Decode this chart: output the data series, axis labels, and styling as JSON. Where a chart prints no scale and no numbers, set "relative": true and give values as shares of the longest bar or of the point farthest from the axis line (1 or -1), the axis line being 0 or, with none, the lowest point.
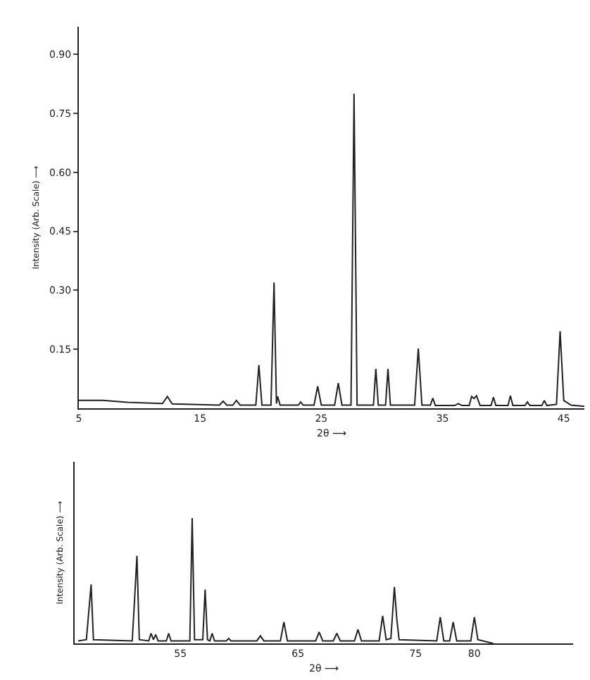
{
  "chart_data": [
    {
      "type": "line",
      "xlabel": "2θ ⟶",
      "ylabel": "Intensity (Arb. Scale) ⟶",
      "xlim": [
        5,
        46.7
      ],
      "ylim": [
        0,
        0.97
      ],
      "xticks": [
        5,
        15,
        25,
        35,
        45
      ],
      "yticks": [
        {
          "value": 0.15,
          "label": "0.15"
        },
        {
          "value": 0.3,
          "label": "0.30"
        },
        {
          "value": 0.45,
          "label": "0.45"
        },
        {
          "value": 0.6,
          "label": "0.60"
        },
        {
          "value": 0.75,
          "label": "0.75"
        },
        {
          "value": 0.9,
          "label": "0.90"
        }
      ],
      "grid": false,
      "marker": "none",
      "line_style": "solid",
      "series": [
        {
          "color": "#222222",
          "x": [
            5,
            7,
            9,
            11.9,
            12.3,
            12.7,
            16.6,
            16.9,
            17.2,
            17.7,
            18.0,
            18.3,
            19.6,
            19.85,
            20.1,
            20.85,
            21.1,
            21.3,
            21.4,
            21.6,
            23.1,
            23.3,
            23.5,
            24.4,
            24.7,
            25.0,
            26.1,
            26.4,
            26.7,
            27.45,
            27.7,
            27.95,
            29.3,
            29.5,
            29.7,
            30.3,
            30.5,
            30.7,
            32.7,
            33.0,
            33.3,
            34.0,
            34.2,
            34.4,
            36.0,
            36.3,
            36.6,
            37.2,
            37.4,
            37.6,
            37.8,
            38.1,
            39.0,
            39.2,
            39.4,
            40.4,
            40.6,
            40.8,
            41.8,
            42.0,
            42.2,
            43.2,
            43.4,
            43.6,
            44.4,
            44.7,
            45.0,
            45.6,
            46.7
          ],
          "values": [
            0.02,
            0.02,
            0.015,
            0.012,
            0.03,
            0.011,
            0.008,
            0.018,
            0.008,
            0.008,
            0.02,
            0.008,
            0.008,
            0.11,
            0.008,
            0.008,
            0.32,
            0.012,
            0.03,
            0.008,
            0.008,
            0.016,
            0.008,
            0.008,
            0.056,
            0.008,
            0.008,
            0.064,
            0.008,
            0.008,
            0.8,
            0.008,
            0.008,
            0.1,
            0.008,
            0.008,
            0.1,
            0.008,
            0.008,
            0.152,
            0.008,
            0.008,
            0.026,
            0.007,
            0.007,
            0.012,
            0.007,
            0.007,
            0.03,
            0.025,
            0.032,
            0.007,
            0.007,
            0.028,
            0.007,
            0.007,
            0.032,
            0.007,
            0.007,
            0.016,
            0.007,
            0.007,
            0.02,
            0.007,
            0.01,
            0.196,
            0.02,
            0.008,
            0.005
          ]
        }
      ]
    },
    {
      "type": "line",
      "xlabel": "2θ ⟶",
      "ylabel": "Intensity (Arb. Scale) ⟶",
      "relative": true,
      "tick_labels": "x",
      "xlim": [
        46,
        88.4
      ],
      "xticks": [
        55,
        65,
        75,
        80
      ],
      "grid": false,
      "marker": "none",
      "line_style": "solid",
      "series": [
        {
          "color": "#222222",
          "x": [
            46.3,
            47.0,
            47.2,
            47.4,
            47.6,
            50.9,
            51.1,
            51.3,
            51.5,
            52.3,
            52.5,
            52.7,
            52.9,
            53.1,
            53.8,
            54.0,
            54.2,
            55.8,
            56.0,
            56.2,
            56.9,
            57.1,
            57.3,
            57.5,
            57.7,
            57.9,
            58.9,
            59.1,
            59.3,
            61.5,
            61.8,
            62.1,
            63.5,
            63.8,
            64.1,
            66.5,
            66.8,
            67.1,
            68.0,
            68.3,
            68.6,
            69.8,
            70.1,
            70.4,
            71.9,
            72.2,
            72.5,
            72.9,
            73.2,
            73.4,
            73.6,
            76.8,
            77.1,
            77.4,
            77.9,
            78.2,
            78.5,
            79.7,
            80.0,
            80.3,
            81.6
          ],
          "values": [
            0.02,
            0.03,
            0.25,
            0.47,
            0.03,
            0.02,
            0.35,
            0.7,
            0.03,
            0.02,
            0.08,
            0.03,
            0.07,
            0.02,
            0.02,
            0.08,
            0.02,
            0.02,
            1.0,
            0.03,
            0.03,
            0.43,
            0.03,
            0.02,
            0.08,
            0.02,
            0.02,
            0.04,
            0.02,
            0.02,
            0.06,
            0.02,
            0.02,
            0.17,
            0.02,
            0.02,
            0.09,
            0.02,
            0.02,
            0.08,
            0.02,
            0.02,
            0.11,
            0.02,
            0.02,
            0.22,
            0.03,
            0.04,
            0.45,
            0.2,
            0.03,
            0.02,
            0.21,
            0.02,
            0.02,
            0.17,
            0.02,
            0.02,
            0.21,
            0.03,
            0
          ]
        }
      ]
    }
  ]
}
